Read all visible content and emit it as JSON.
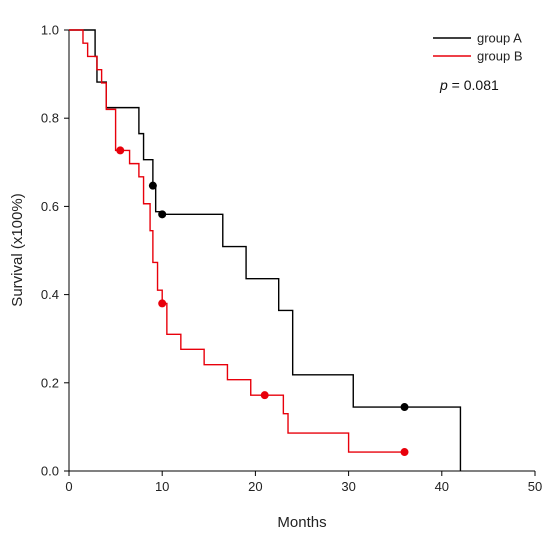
{
  "chart_data": {
    "type": "line",
    "step": true,
    "title": "",
    "xlabel": "Months",
    "ylabel": "Survival (x100%)",
    "xlim": [
      0,
      50
    ],
    "ylim": [
      0,
      1
    ],
    "xticks": [
      0,
      10,
      20,
      30,
      40,
      50
    ],
    "yticks": [
      0.0,
      0.2,
      0.4,
      0.6,
      0.8,
      1.0
    ],
    "ytick_labels": [
      "0.0",
      "0.2",
      "0.4",
      "0.6",
      "0.8",
      "1.0"
    ],
    "grid": false,
    "legend": "top-right",
    "annotation": {
      "label": "p",
      "text": " = 0.081"
    },
    "series": [
      {
        "name": "group A",
        "color": "#000000",
        "x": [
          0,
          2.8,
          3.0,
          4.0,
          7.5,
          8.0,
          9.0,
          9.3,
          10.0,
          16.5,
          19.0,
          22.5,
          24.0,
          30.5,
          42.0
        ],
        "y": [
          1.0,
          0.94,
          0.882,
          0.824,
          0.765,
          0.706,
          0.647,
          0.588,
          0.582,
          0.509,
          0.436,
          0.364,
          0.218,
          0.145,
          0.0
        ],
        "end_x": 42.0,
        "censored": [
          {
            "x": 9.0,
            "y": 0.647
          },
          {
            "x": 10.0,
            "y": 0.582
          },
          {
            "x": 36.0,
            "y": 0.145
          }
        ]
      },
      {
        "name": "group B",
        "color": "#e8000b",
        "x": [
          0,
          1.5,
          2.0,
          3.0,
          3.5,
          4.0,
          5.0,
          6.5,
          7.5,
          8.0,
          8.7,
          9.0,
          9.5,
          10.0,
          10.5,
          12.0,
          14.5,
          17.0,
          19.5,
          23.0,
          23.5,
          30.0
        ],
        "y": [
          1.0,
          0.97,
          0.94,
          0.91,
          0.88,
          0.82,
          0.727,
          0.697,
          0.667,
          0.606,
          0.545,
          0.473,
          0.41,
          0.38,
          0.31,
          0.276,
          0.241,
          0.207,
          0.172,
          0.13,
          0.086,
          0.043
        ],
        "end_x": 36.0,
        "censored": [
          {
            "x": 5.5,
            "y": 0.727
          },
          {
            "x": 10.0,
            "y": 0.38
          },
          {
            "x": 21.0,
            "y": 0.172
          },
          {
            "x": 36.0,
            "y": 0.043
          }
        ]
      }
    ]
  }
}
